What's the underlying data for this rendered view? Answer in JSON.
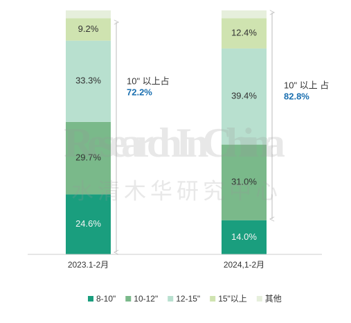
{
  "chart_data": {
    "type": "stacked_bar",
    "categories": [
      "2023.1-2月",
      "2024,1-2月"
    ],
    "ylim": [
      0,
      100
    ],
    "series": [
      {
        "name": "8-10\"",
        "color": "#1a9e7e",
        "values": [
          24.6,
          14.0
        ],
        "value_labels": [
          "24.6%",
          "14.0%"
        ]
      },
      {
        "name": "10-12\"",
        "color": "#7ab98a",
        "values": [
          29.7,
          31.0
        ],
        "value_labels": [
          "29.7%",
          "31.0%"
        ]
      },
      {
        "name": "12-15\"",
        "color": "#b8e0cf",
        "values": [
          33.3,
          39.4
        ],
        "value_labels": [
          "33.3%",
          "39.4%"
        ]
      },
      {
        "name": "15\"以上",
        "color": "#cfe3b0",
        "values": [
          9.2,
          12.4
        ],
        "value_labels": [
          "9.2%",
          "12.4%"
        ]
      },
      {
        "name": "其他",
        "color": "#e6efdc",
        "values": [
          3.2,
          3.2
        ]
      }
    ],
    "annotations": [
      {
        "text": "10\" 以上占",
        "value": "72.2%"
      },
      {
        "text": "10\" 以上 占",
        "value": "82.8%"
      }
    ],
    "watermark": [
      "ResearchInChina",
      "水清木华研究中心"
    ]
  }
}
